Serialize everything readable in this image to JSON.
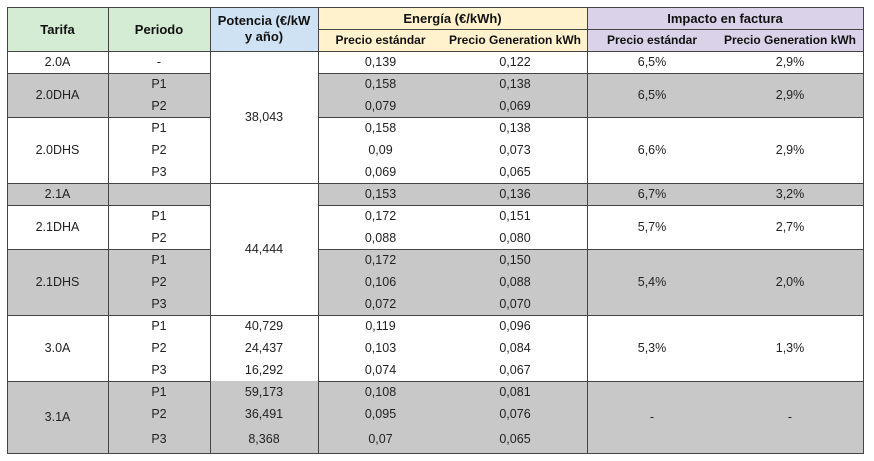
{
  "header": {
    "tarifa": "Tarifa",
    "periodo": "Periodo",
    "potencia": "Potencia (€/kW\ny año)",
    "energia": "Energía (€/kWh)",
    "impacto": "Impacto en factura",
    "precio_estandar": "Precio estándar",
    "precio_generation": "Precio Generation kWh"
  },
  "colors": {
    "green_header": "#d4ecd4",
    "blue_header": "#cfe2f3",
    "yellow_header": "#fff2cc",
    "purple_header": "#d9d2e9",
    "gray_row": "#c8c8c8",
    "white_row": "#ffffff"
  },
  "groups": [
    {
      "tarifa": "2.0A",
      "shaded": false,
      "periods": [
        "-"
      ],
      "e_std": [
        "0,139"
      ],
      "e_gen": [
        "0,122"
      ],
      "i_std": "6,5%",
      "i_gen": "2,9%"
    },
    {
      "tarifa": "2.0DHA",
      "shaded": true,
      "periods": [
        "P1",
        "P2"
      ],
      "e_std": [
        "0,158",
        "0,079"
      ],
      "e_gen": [
        "0,138",
        "0,069"
      ],
      "i_std": "6,5%",
      "i_gen": "2,9%"
    },
    {
      "tarifa": "2.0DHS",
      "shaded": false,
      "periods": [
        "P1",
        "P2",
        "P3"
      ],
      "e_std": [
        "0,158",
        "0,09",
        "0,069"
      ],
      "e_gen": [
        "0,138",
        "0,073",
        "0,065"
      ],
      "i_std": "6,6%",
      "i_gen": "2,9%"
    },
    {
      "tarifa": "2.1A",
      "shaded": true,
      "periods": [
        ""
      ],
      "e_std": [
        "0,153"
      ],
      "e_gen": [
        "0,136"
      ],
      "i_std": "6,7%",
      "i_gen": "3,2%"
    },
    {
      "tarifa": "2.1DHA",
      "shaded": false,
      "periods": [
        "P1",
        "P2"
      ],
      "e_std": [
        "0,172",
        "0,088"
      ],
      "e_gen": [
        "0,151",
        "0,080"
      ],
      "i_std": "5,7%",
      "i_gen": "2,7%"
    },
    {
      "tarifa": "2.1DHS",
      "shaded": true,
      "periods": [
        "P1",
        "P2",
        "P3"
      ],
      "e_std": [
        "0,172",
        "0,106",
        "0,072"
      ],
      "e_gen": [
        "0,150",
        "0,088",
        "0,070"
      ],
      "i_std": "5,4%",
      "i_gen": "2,0%"
    },
    {
      "tarifa": "3.0A",
      "shaded": false,
      "periods": [
        "P1",
        "P2",
        "P3"
      ],
      "potencia": [
        "40,729",
        "24,437",
        "16,292"
      ],
      "e_std": [
        "0,119",
        "0,103",
        "0,074"
      ],
      "e_gen": [
        "0,096",
        "0,084",
        "0,067"
      ],
      "i_std": "5,3%",
      "i_gen": "1,3%"
    },
    {
      "tarifa": "3.1A",
      "shaded": true,
      "periods": [
        "P1",
        "P2",
        "P3"
      ],
      "potencia": [
        "59,173",
        "36,491",
        "8,368"
      ],
      "e_std": [
        "0,108",
        "0,095",
        "0,07"
      ],
      "e_gen": [
        "0,081",
        "0,076",
        "0,065"
      ],
      "i_std": "-",
      "i_gen": "-"
    }
  ],
  "potencia_merged": [
    {
      "value": "38,043",
      "group_from": 0,
      "group_to": 2
    },
    {
      "value": "44,444",
      "group_from": 3,
      "group_to": 5
    }
  ]
}
